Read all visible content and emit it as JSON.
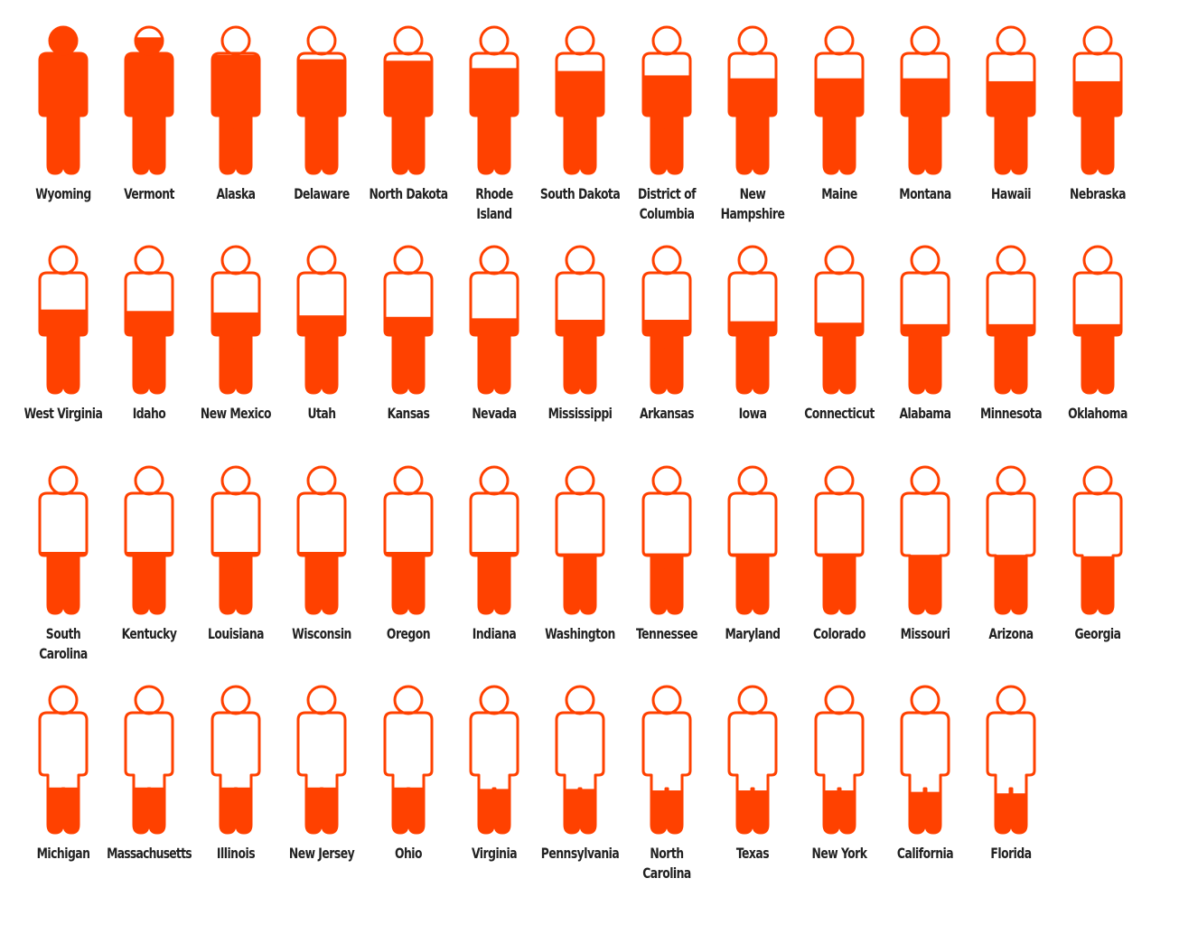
{
  "colors": {
    "accent": "#ff4100",
    "background": "#ffffff",
    "text": "#222222"
  },
  "icon": "person-icon",
  "chart_data": {
    "type": "pictogram",
    "title": "",
    "fill_description_note": "",
    "items": [
      {
        "name": "Wyoming",
        "fill": 1.0
      },
      {
        "name": "Vermont",
        "fill": 0.93
      },
      {
        "name": "Alaska",
        "fill": 0.81
      },
      {
        "name": "Delaware",
        "fill": 0.78
      },
      {
        "name": "North Dakota",
        "fill": 0.77
      },
      {
        "name": "Rhode Island",
        "fill": 0.72
      },
      {
        "name": "South Dakota",
        "fill": 0.7
      },
      {
        "name": "District of Columbia",
        "fill": 0.67
      },
      {
        "name": "New Hampshire",
        "fill": 0.65
      },
      {
        "name": "Maine",
        "fill": 0.65
      },
      {
        "name": "Montana",
        "fill": 0.65
      },
      {
        "name": "Hawaii",
        "fill": 0.63
      },
      {
        "name": "Nebraska",
        "fill": 0.63
      },
      {
        "name": "West Virginia",
        "fill": 0.57
      },
      {
        "name": "Idaho",
        "fill": 0.56
      },
      {
        "name": "New Mexico",
        "fill": 0.55
      },
      {
        "name": "Utah",
        "fill": 0.53
      },
      {
        "name": "Kansas",
        "fill": 0.52
      },
      {
        "name": "Nevada",
        "fill": 0.51
      },
      {
        "name": "Mississippi",
        "fill": 0.5
      },
      {
        "name": "Arkansas",
        "fill": 0.5
      },
      {
        "name": "Iowa",
        "fill": 0.49
      },
      {
        "name": "Connecticut",
        "fill": 0.48
      },
      {
        "name": "Alabama",
        "fill": 0.47
      },
      {
        "name": "Minnesota",
        "fill": 0.47
      },
      {
        "name": "Oklahoma",
        "fill": 0.47
      },
      {
        "name": "South Carolina",
        "fill": 0.42
      },
      {
        "name": "Kentucky",
        "fill": 0.42
      },
      {
        "name": "Louisiana",
        "fill": 0.42
      },
      {
        "name": "Wisconsin",
        "fill": 0.42
      },
      {
        "name": "Oregon",
        "fill": 0.42
      },
      {
        "name": "Indiana",
        "fill": 0.42
      },
      {
        "name": "Washington",
        "fill": 0.41
      },
      {
        "name": "Tennessee",
        "fill": 0.41
      },
      {
        "name": "Maryland",
        "fill": 0.41
      },
      {
        "name": "Colorado",
        "fill": 0.41
      },
      {
        "name": "Missouri",
        "fill": 0.4
      },
      {
        "name": "Arizona",
        "fill": 0.4
      },
      {
        "name": "Georgia",
        "fill": 0.39
      },
      {
        "name": "Michigan",
        "fill": 0.31
      },
      {
        "name": "Massachusetts",
        "fill": 0.31
      },
      {
        "name": "Illinois",
        "fill": 0.31
      },
      {
        "name": "New Jersey",
        "fill": 0.31
      },
      {
        "name": "Ohio",
        "fill": 0.31
      },
      {
        "name": "Virginia",
        "fill": 0.3
      },
      {
        "name": "Pennsylvania",
        "fill": 0.3
      },
      {
        "name": "North Carolina",
        "fill": 0.29
      },
      {
        "name": "Texas",
        "fill": 0.29
      },
      {
        "name": "New York",
        "fill": 0.29
      },
      {
        "name": "California",
        "fill": 0.28
      },
      {
        "name": "Florida",
        "fill": 0.27
      }
    ],
    "rows": [
      13,
      13,
      13,
      12
    ]
  }
}
